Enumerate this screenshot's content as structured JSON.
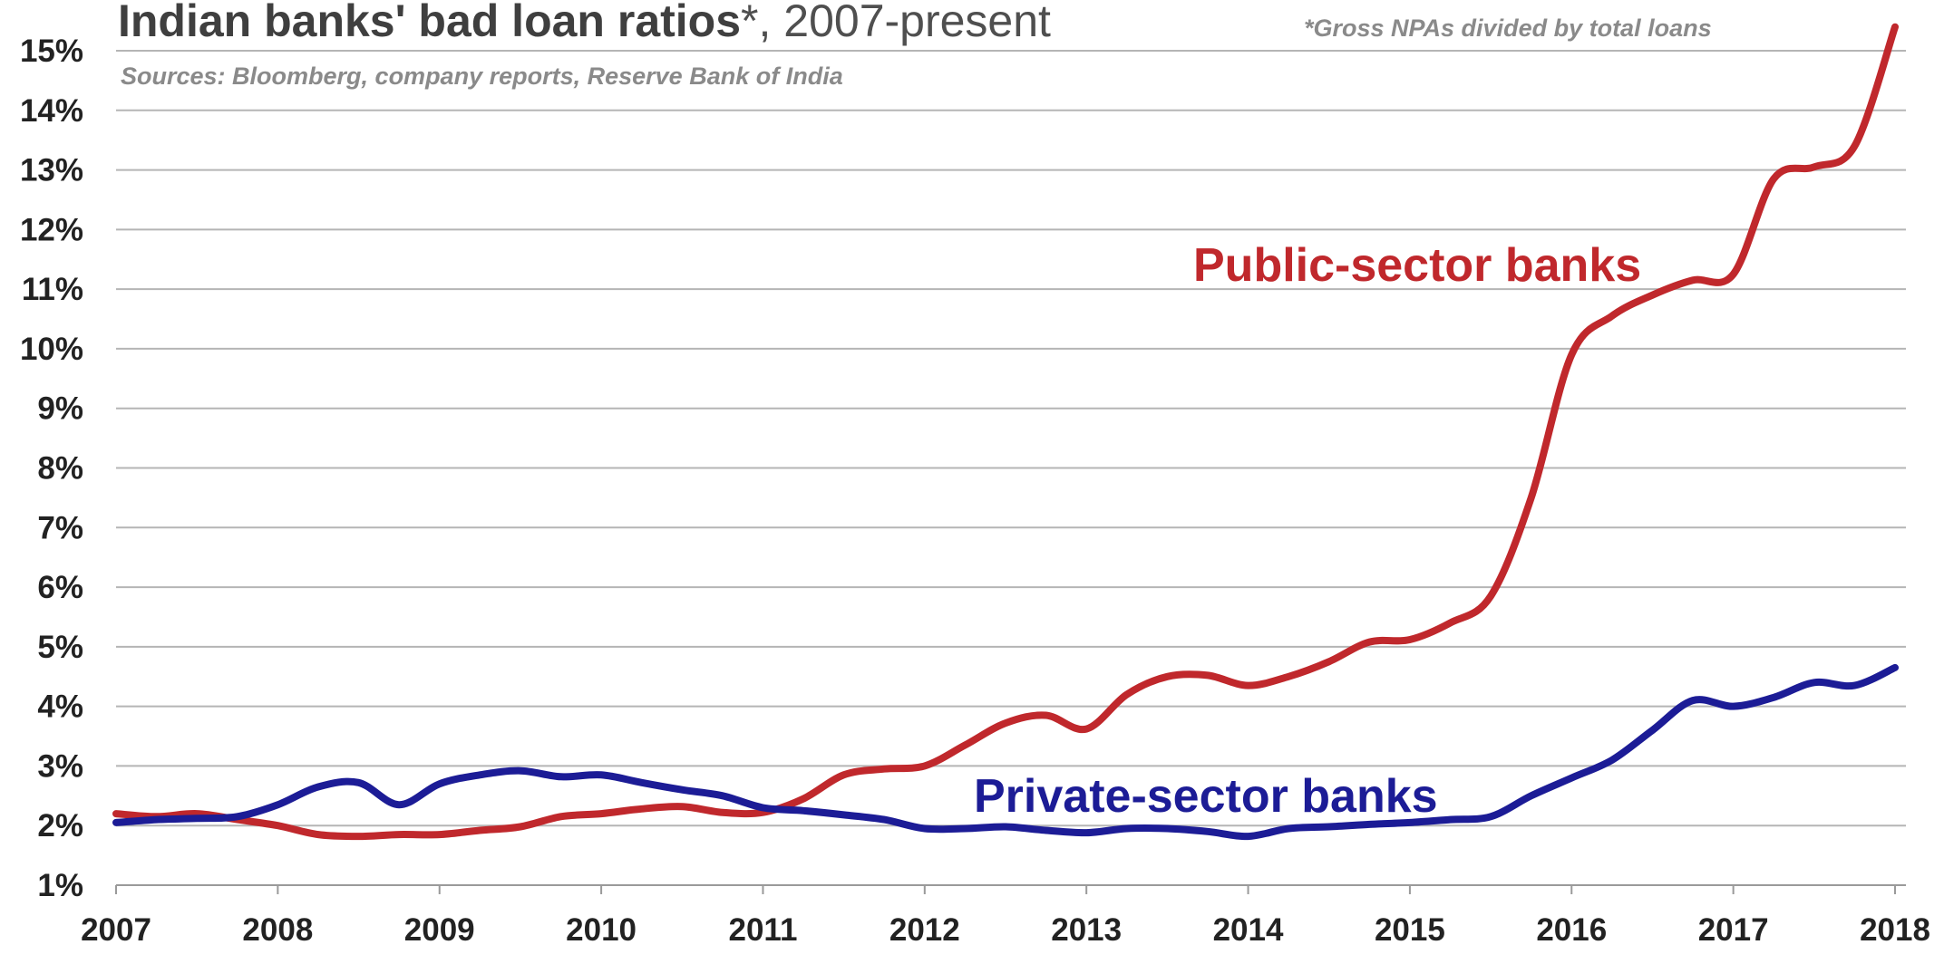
{
  "chart_data": {
    "type": "line",
    "title": "Indian banks' bad loan ratios",
    "title_asterisk": "*",
    "title_suffix": ", 2007-present",
    "footnote": "*Gross NPAs divided by total loans",
    "source": "Sources: Bloomberg, company reports, Reserve Bank of India",
    "xlim": [
      2007,
      2018
    ],
    "ylim": [
      1,
      15
    ],
    "x_ticks": [
      2007,
      2008,
      2009,
      2010,
      2011,
      2012,
      2013,
      2014,
      2015,
      2016,
      2017,
      2018
    ],
    "x_tick_labels": [
      "2007",
      "2008",
      "2009",
      "2010",
      "2011",
      "2012",
      "2013",
      "2014",
      "2015",
      "2016",
      "2017",
      "2018"
    ],
    "y_ticks": [
      1,
      2,
      3,
      4,
      5,
      6,
      7,
      8,
      9,
      10,
      11,
      12,
      13,
      14,
      15
    ],
    "y_tick_labels": [
      "1%",
      "2%",
      "3%",
      "4%",
      "5%",
      "6%",
      "7%",
      "8%",
      "9%",
      "10%",
      "11%",
      "12%",
      "13%",
      "14%",
      "15%"
    ],
    "grid": true,
    "legend": "inline labels",
    "series": [
      {
        "name": "Public-sector banks",
        "color": "#c0282c",
        "x": [
          2007.0,
          2007.25,
          2007.5,
          2007.75,
          2008.0,
          2008.25,
          2008.5,
          2008.75,
          2009.0,
          2009.25,
          2009.5,
          2009.75,
          2010.0,
          2010.25,
          2010.5,
          2010.75,
          2011.0,
          2011.25,
          2011.5,
          2011.75,
          2012.0,
          2012.25,
          2012.5,
          2012.75,
          2013.0,
          2013.25,
          2013.5,
          2013.75,
          2014.0,
          2014.25,
          2014.5,
          2014.75,
          2015.0,
          2015.25,
          2015.5,
          2015.75,
          2016.0,
          2016.25,
          2016.5,
          2016.75,
          2017.0,
          2017.25,
          2017.5,
          2017.75,
          2018.0
        ],
        "values": [
          2.2,
          2.15,
          2.2,
          2.1,
          2.0,
          1.85,
          1.82,
          1.85,
          1.85,
          1.92,
          1.98,
          2.15,
          2.2,
          2.28,
          2.32,
          2.22,
          2.22,
          2.45,
          2.85,
          2.95,
          3.0,
          3.35,
          3.72,
          3.85,
          3.62,
          4.2,
          4.5,
          4.52,
          4.35,
          4.5,
          4.75,
          5.08,
          5.12,
          5.4,
          5.85,
          7.5,
          9.9,
          10.55,
          10.9,
          11.15,
          11.25,
          12.85,
          13.05,
          13.4,
          15.4
        ]
      },
      {
        "name": "Private-sector banks",
        "color": "#1c1c96",
        "x": [
          2007.0,
          2007.25,
          2007.5,
          2007.75,
          2008.0,
          2008.25,
          2008.5,
          2008.75,
          2009.0,
          2009.25,
          2009.5,
          2009.75,
          2010.0,
          2010.25,
          2010.5,
          2010.75,
          2011.0,
          2011.25,
          2011.5,
          2011.75,
          2012.0,
          2012.25,
          2012.5,
          2012.75,
          2013.0,
          2013.25,
          2013.5,
          2013.75,
          2014.0,
          2014.25,
          2014.5,
          2014.75,
          2015.0,
          2015.25,
          2015.5,
          2015.75,
          2016.0,
          2016.25,
          2016.5,
          2016.75,
          2017.0,
          2017.25,
          2017.5,
          2017.75,
          2018.0
        ],
        "values": [
          2.05,
          2.1,
          2.12,
          2.15,
          2.35,
          2.65,
          2.72,
          2.35,
          2.7,
          2.85,
          2.92,
          2.82,
          2.85,
          2.72,
          2.6,
          2.5,
          2.3,
          2.25,
          2.18,
          2.1,
          1.95,
          1.95,
          1.98,
          1.92,
          1.88,
          1.95,
          1.95,
          1.9,
          1.82,
          1.95,
          1.98,
          2.02,
          2.05,
          2.1,
          2.15,
          2.5,
          2.8,
          3.1,
          3.6,
          4.1,
          4.0,
          4.15,
          4.4,
          4.35,
          4.65
        ]
      }
    ]
  }
}
